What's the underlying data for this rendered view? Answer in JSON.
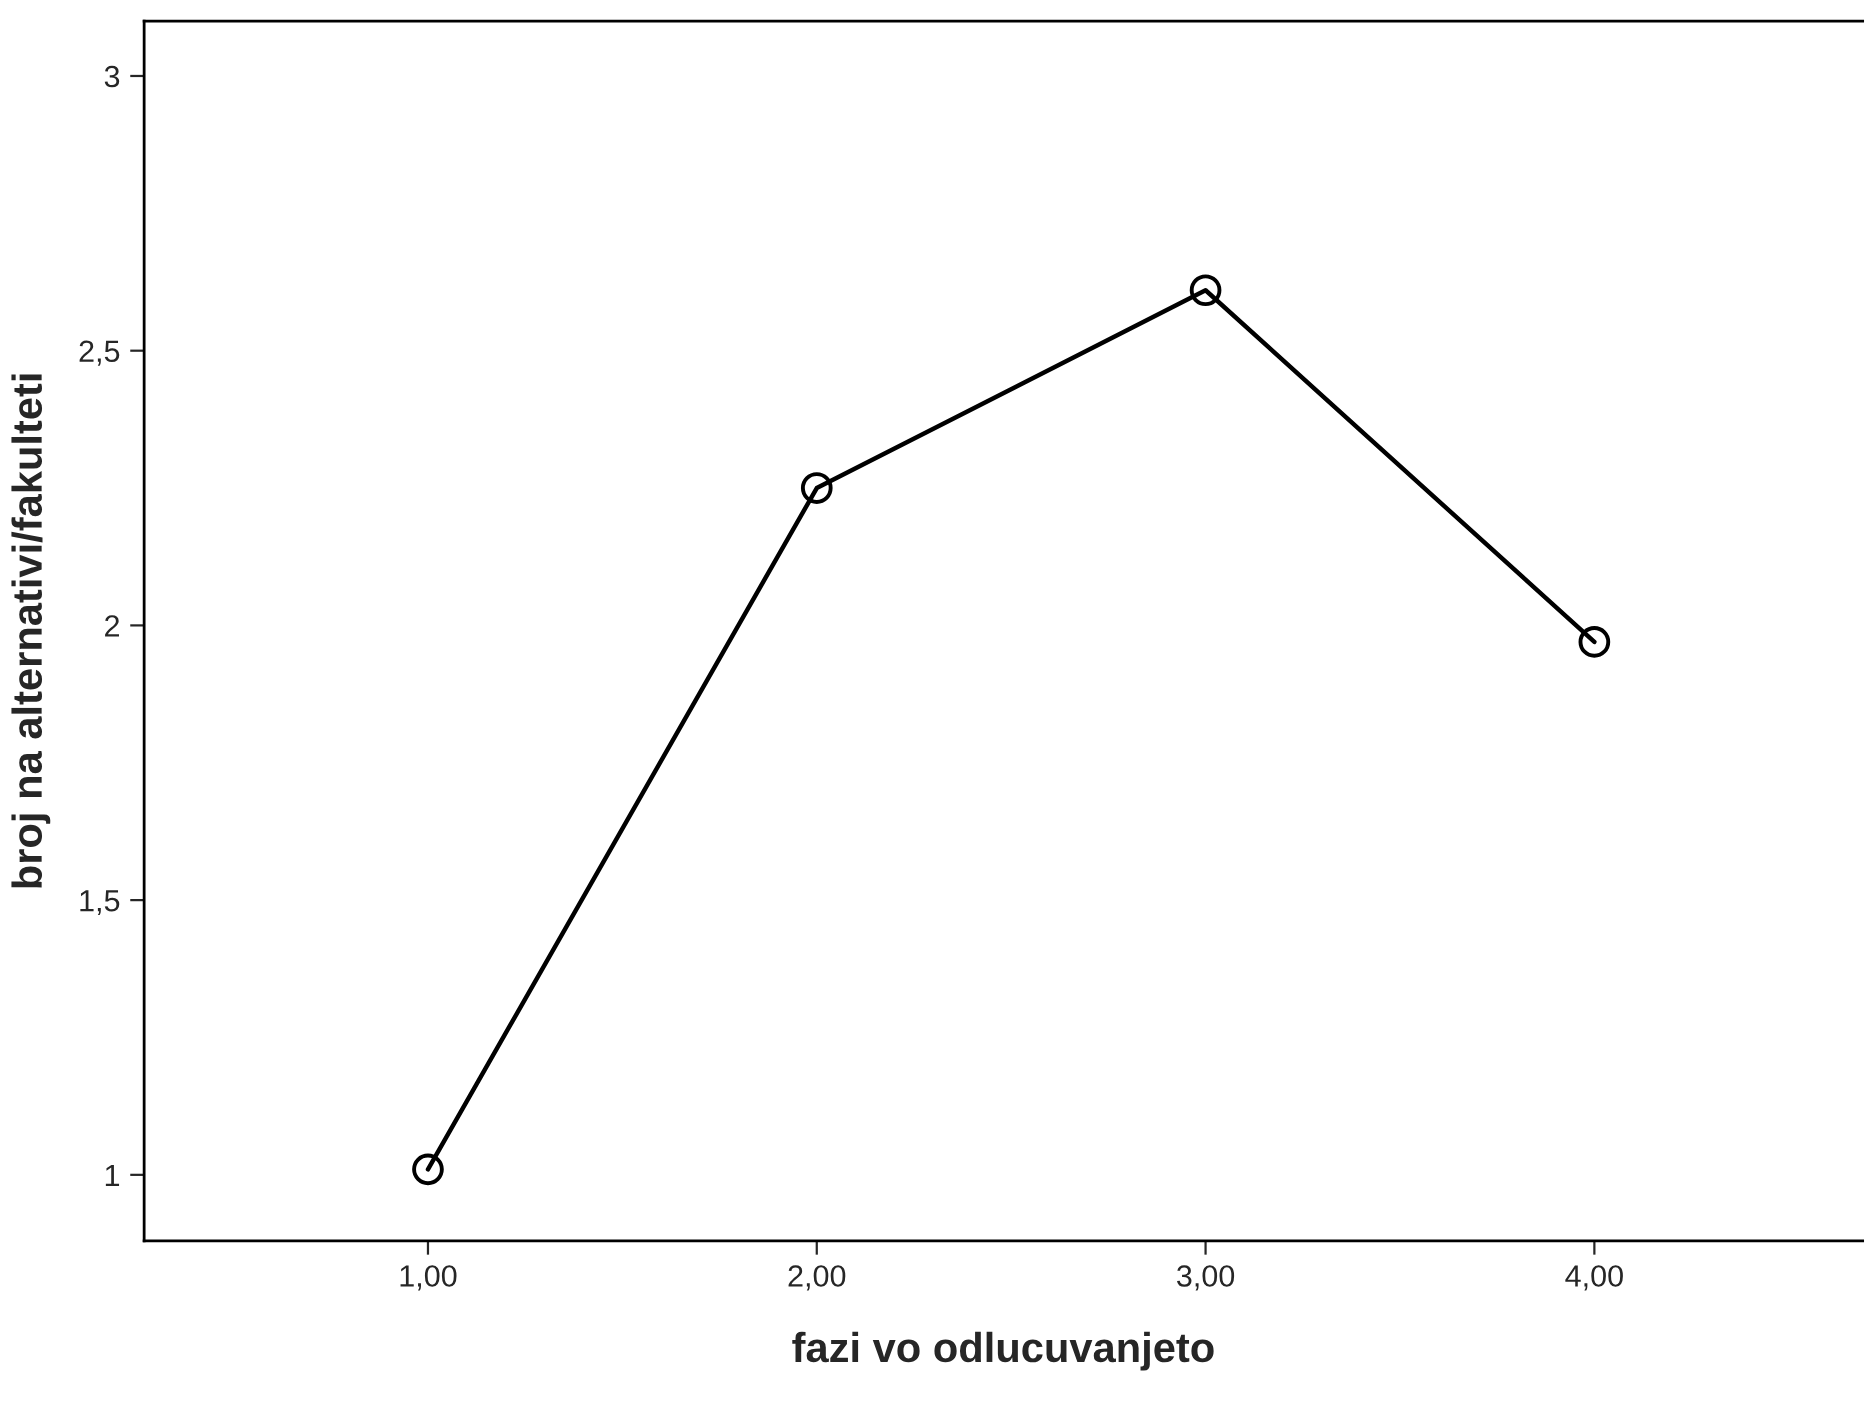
{
  "chart_data": {
    "type": "line",
    "xlabel": "fazi vo odlucuvanjeto",
    "ylabel": "broj na alternativi/fakulteti",
    "x": [
      1,
      2,
      3,
      4
    ],
    "series": [
      {
        "color": "#000000",
        "values": [
          1.01,
          2.25,
          2.61,
          1.97
        ]
      }
    ],
    "xlim": [
      0.27,
      4.69
    ],
    "ylim": [
      0.88,
      3.1
    ],
    "xticks": [
      {
        "value": 1,
        "label": "1,00"
      },
      {
        "value": 2,
        "label": "2,00"
      },
      {
        "value": 3,
        "label": "3,00"
      },
      {
        "value": 4,
        "label": "4,00"
      }
    ],
    "yticks": [
      1,
      {
        "value": 1.5,
        "label": "1,5"
      },
      2,
      {
        "value": 2.5,
        "label": "2,5"
      },
      3
    ],
    "marker": "circle",
    "line_style": "solid",
    "grid": false,
    "legend": false
  }
}
